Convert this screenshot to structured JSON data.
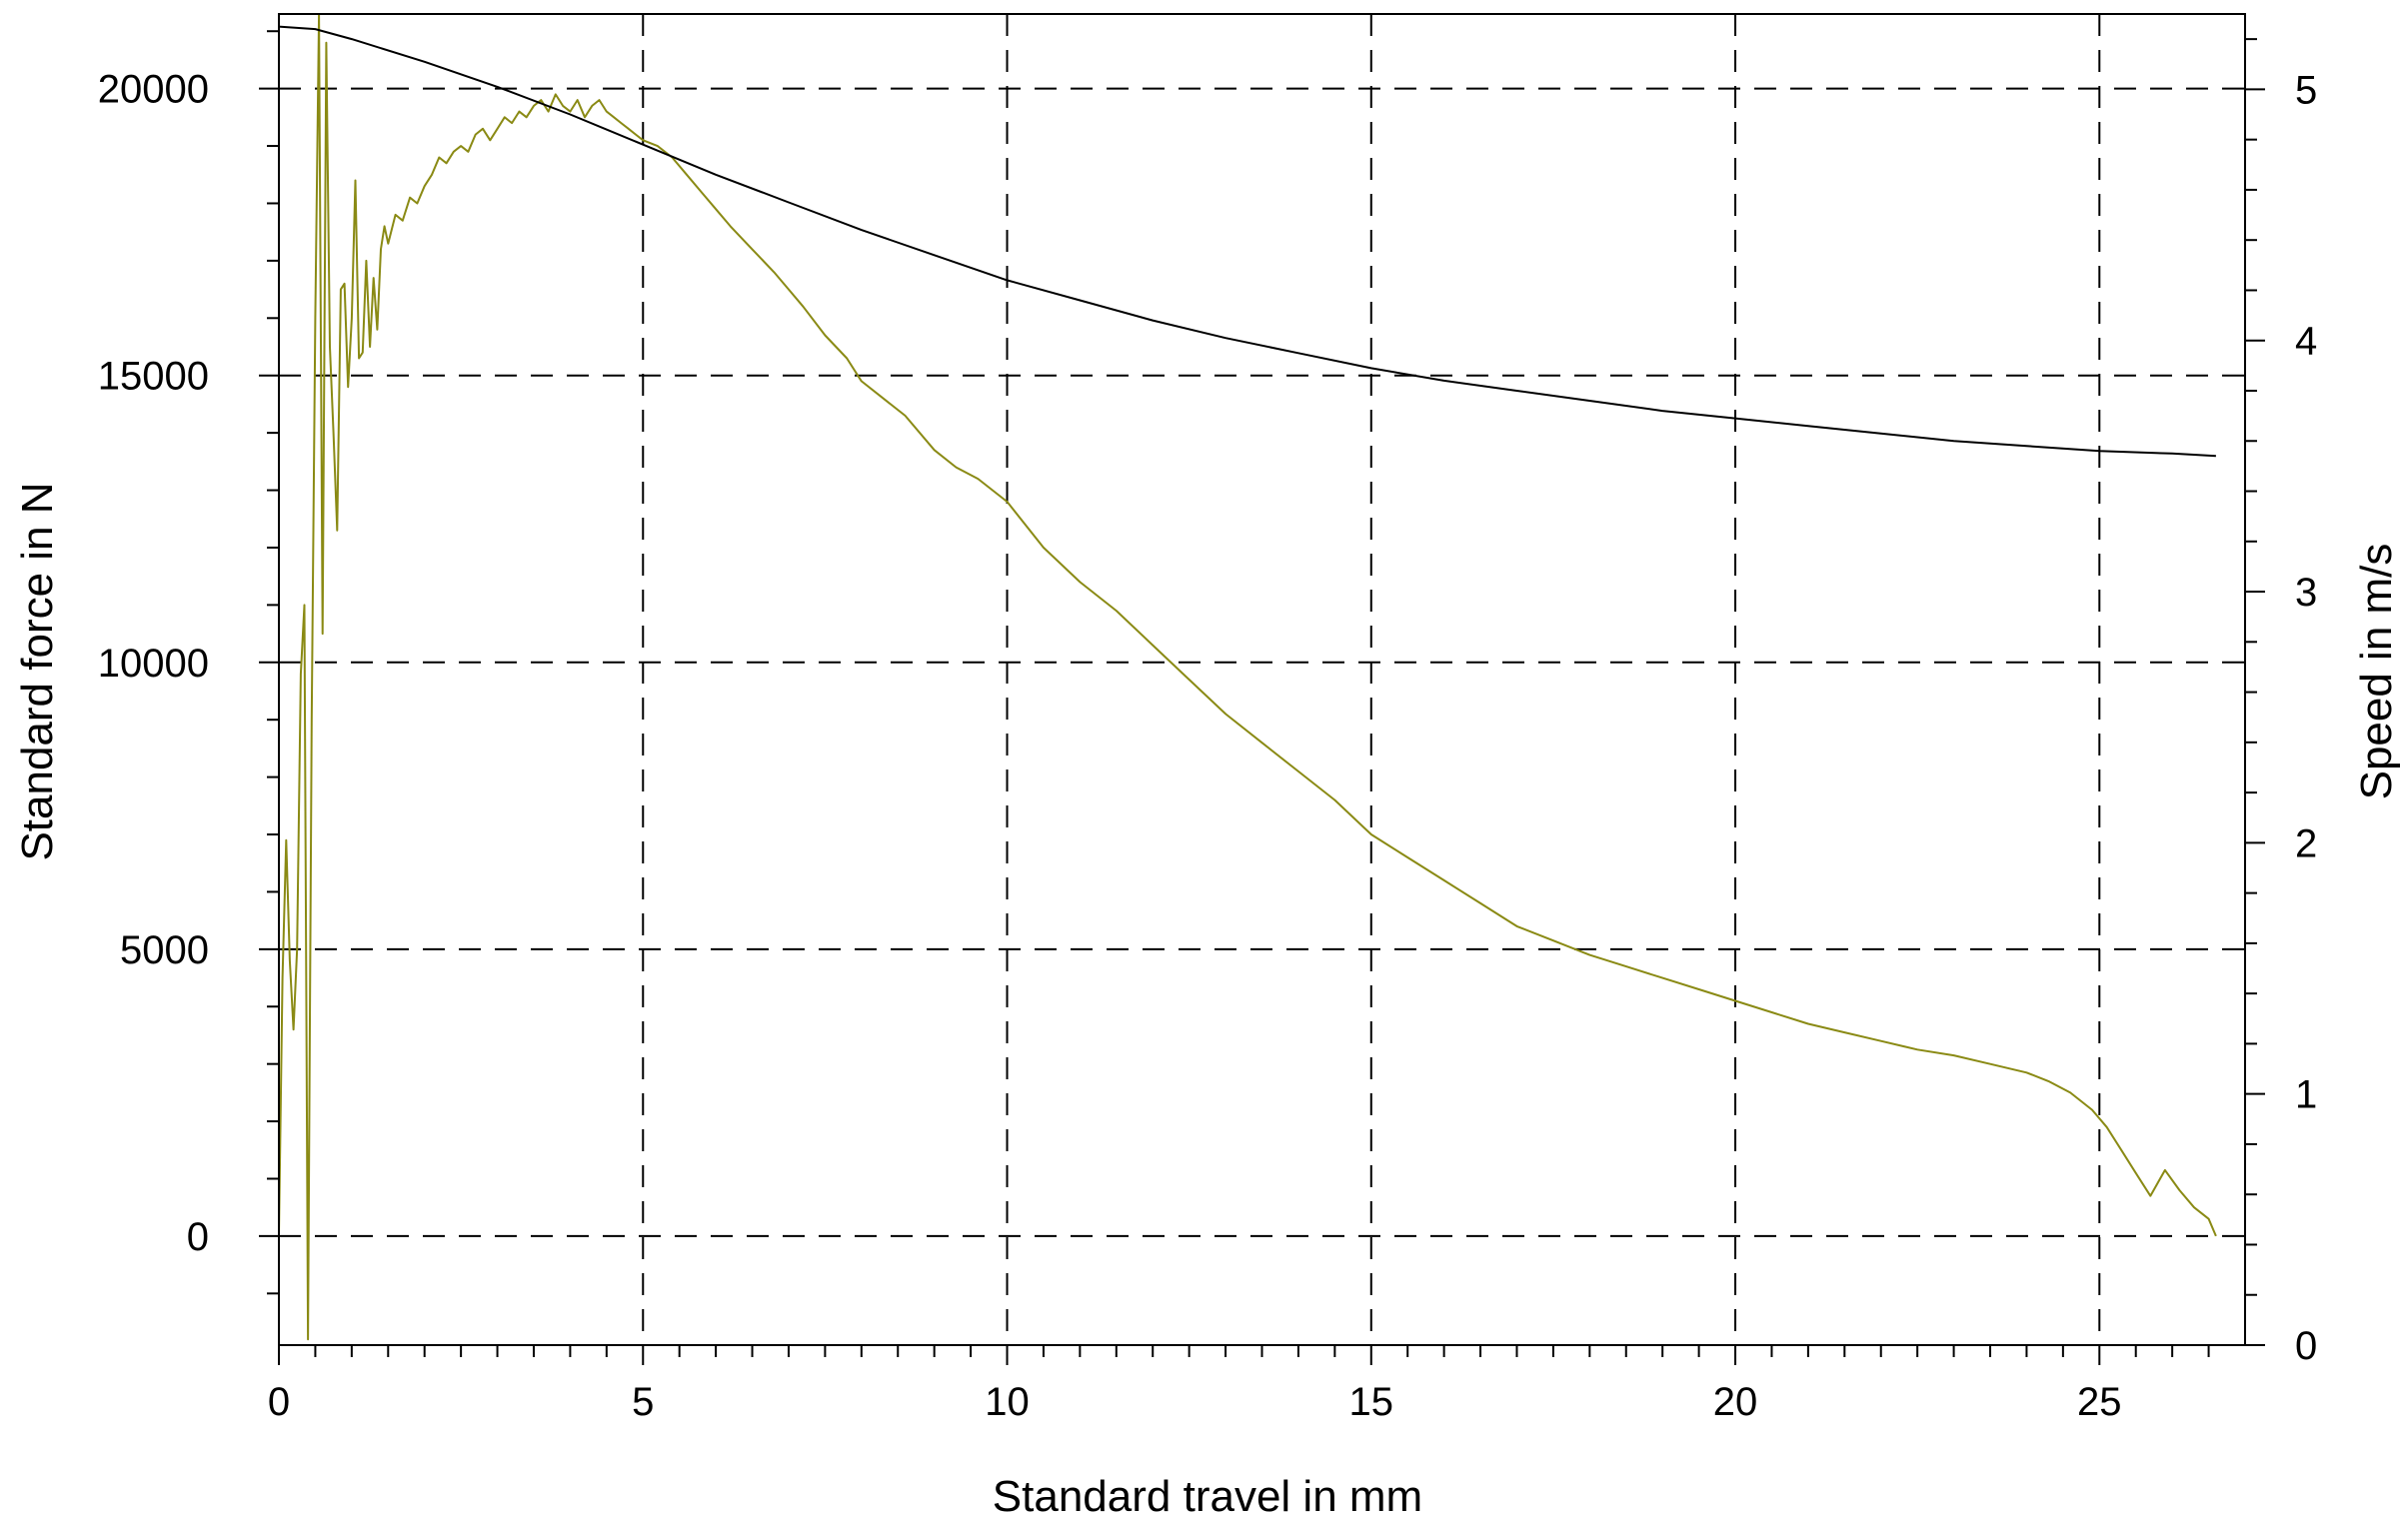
{
  "chart_data": {
    "type": "line",
    "title": "",
    "xlabel": "Standard travel in mm",
    "ylabel": "Standard force in N",
    "ylabel_right": "Speed in m/s",
    "xlim": [
      0,
      27
    ],
    "ylim": [
      -1900,
      21300
    ],
    "ylim_right": [
      0,
      5.3
    ],
    "x_ticks": [
      0,
      5,
      10,
      15,
      20,
      25
    ],
    "y_ticks": [
      0,
      5000,
      10000,
      15000,
      20000
    ],
    "y_right_ticks": [
      0,
      1,
      2,
      3,
      4,
      5
    ],
    "grid": true,
    "legend": "none",
    "series": [
      {
        "axis": "left",
        "color": "#8a8a14",
        "x": [
          0,
          0.05,
          0.1,
          0.15,
          0.2,
          0.25,
          0.3,
          0.35,
          0.4,
          0.45,
          0.5,
          0.55,
          0.6,
          0.65,
          0.7,
          0.75,
          0.8,
          0.85,
          0.9,
          0.95,
          1.0,
          1.05,
          1.1,
          1.15,
          1.2,
          1.25,
          1.3,
          1.35,
          1.4,
          1.45,
          1.5,
          1.6,
          1.7,
          1.8,
          1.9,
          2.0,
          2.1,
          2.2,
          2.3,
          2.4,
          2.5,
          2.6,
          2.7,
          2.8,
          2.9,
          3.0,
          3.1,
          3.2,
          3.3,
          3.4,
          3.5,
          3.6,
          3.7,
          3.8,
          3.9,
          4.0,
          4.1,
          4.2,
          4.3,
          4.4,
          4.5,
          4.6,
          4.7,
          4.8,
          4.9,
          5.0,
          5.2,
          5.4,
          5.6,
          5.8,
          6.0,
          6.2,
          6.5,
          6.8,
          7.0,
          7.2,
          7.5,
          7.8,
          8.0,
          8.3,
          8.6,
          9.0,
          9.3,
          9.6,
          10.0,
          10.5,
          11.0,
          11.5,
          12.0,
          12.5,
          13.0,
          13.5,
          14.0,
          14.5,
          15.0,
          15.5,
          16.0,
          16.5,
          17.0,
          17.5,
          18.0,
          18.5,
          19.0,
          19.5,
          20.0,
          20.5,
          21.0,
          21.5,
          22.0,
          22.5,
          23.0,
          23.5,
          24.0,
          24.3,
          24.6,
          24.9,
          25.1,
          25.3,
          25.5,
          25.7,
          25.9,
          26.1,
          26.3,
          26.5,
          26.6
        ],
        "y": [
          0,
          4500,
          6900,
          4800,
          3600,
          5000,
          9800,
          11000,
          -1800,
          9000,
          16000,
          21300,
          10500,
          20800,
          15500,
          14000,
          12300,
          16500,
          16600,
          14800,
          16000,
          18400,
          15300,
          15400,
          17000,
          15500,
          16700,
          15800,
          17200,
          17600,
          17300,
          17800,
          17700,
          18100,
          18000,
          18300,
          18500,
          18800,
          18700,
          18900,
          19000,
          18900,
          19200,
          19300,
          19100,
          19300,
          19500,
          19400,
          19600,
          19500,
          19700,
          19800,
          19600,
          19900,
          19700,
          19600,
          19800,
          19500,
          19700,
          19800,
          19600,
          19500,
          19400,
          19300,
          19200,
          19100,
          19000,
          18800,
          18500,
          18200,
          17900,
          17600,
          17200,
          16800,
          16500,
          16200,
          15700,
          15300,
          14900,
          14600,
          14300,
          13700,
          13400,
          13200,
          12800,
          12000,
          11400,
          10900,
          10300,
          9700,
          9100,
          8600,
          8100,
          7600,
          7000,
          6600,
          6200,
          5800,
          5400,
          5150,
          4900,
          4700,
          4500,
          4300,
          4100,
          3900,
          3700,
          3550,
          3400,
          3250,
          3150,
          3000,
          2850,
          2700,
          2500,
          2200,
          1900,
          1500,
          1100,
          700,
          1150,
          800,
          500,
          300,
          0
        ]
      },
      {
        "axis": "right",
        "color": "#000000",
        "x": [
          0,
          0.5,
          1,
          2,
          3,
          4,
          5,
          6,
          7,
          8,
          9,
          10,
          11,
          12,
          13,
          14,
          15,
          16,
          17,
          18,
          19,
          20,
          21,
          22,
          23,
          24,
          25,
          26,
          26.6
        ],
        "y": [
          5.25,
          5.24,
          5.2,
          5.11,
          5.01,
          4.9,
          4.78,
          4.66,
          4.55,
          4.44,
          4.34,
          4.24,
          4.16,
          4.08,
          4.01,
          3.95,
          3.89,
          3.84,
          3.8,
          3.76,
          3.72,
          3.69,
          3.66,
          3.63,
          3.6,
          3.58,
          3.56,
          3.55,
          3.54
        ]
      }
    ]
  }
}
